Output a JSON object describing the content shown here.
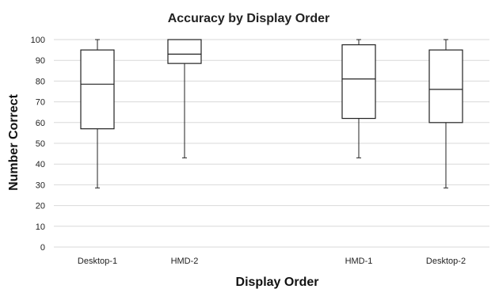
{
  "chart_data": {
    "type": "boxplot",
    "title": "Accuracy by Display Order",
    "xlabel": "Display Order",
    "ylabel": "Number Correct",
    "ylim": [
      0,
      100
    ],
    "yticks": [
      "0",
      "10",
      "20",
      "30",
      "40",
      "50",
      "60",
      "70",
      "80",
      "90",
      "100"
    ],
    "grid": true,
    "legend": "none",
    "categories": [
      "Desktop-1",
      "HMD-2",
      "",
      "HMD-1",
      "Desktop-2"
    ],
    "boxes": [
      {
        "category": "Desktop-1",
        "min": 28.5,
        "q1": 57,
        "median": 78.5,
        "q3": 95,
        "max": 100
      },
      {
        "category": "HMD-2",
        "min": 43,
        "q1": 88.5,
        "median": 93,
        "q3": 100,
        "max": 100
      },
      null,
      {
        "category": "HMD-1",
        "min": 43,
        "q1": 62,
        "median": 81,
        "q3": 97.5,
        "max": 100
      },
      {
        "category": "Desktop-2",
        "min": 28.5,
        "q1": 60,
        "median": 76,
        "q3": 95,
        "max": 100
      }
    ],
    "colors": {
      "box_stroke": "#222222",
      "gridline": "#d9d9d9",
      "background": "#ffffff"
    }
  }
}
